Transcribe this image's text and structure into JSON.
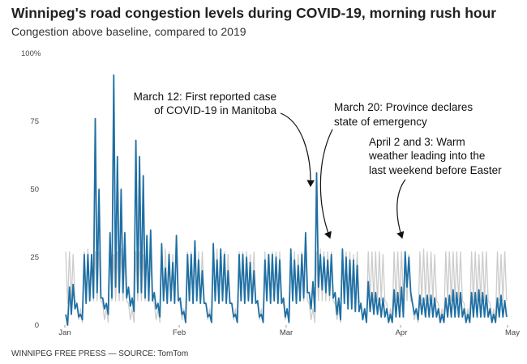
{
  "title": "Winnipeg's road congestion levels during COVID-19, morning rush hour",
  "subtitle": "Congestion above baseline, compared to 2019",
  "footer": "WINNIPEG FREE PRESS — SOURCE: TomTom",
  "chart_data": {
    "type": "line",
    "title": "Winnipeg's road congestion levels during COVID-19, morning rush hour",
    "ylabel": "",
    "xlabel": "",
    "ylim": [
      0,
      100
    ],
    "y_ticks": [
      "100%",
      "75",
      "50",
      "25",
      "0"
    ],
    "y_tick_values": [
      100,
      75,
      50,
      25,
      0
    ],
    "x_ticks": [
      "Jan",
      "Feb",
      "Mar",
      "Apr",
      "May"
    ],
    "x_range": [
      "Jan 1",
      "Apr 29"
    ],
    "grid": false,
    "colors": {
      "current": "#1f6fa3",
      "baseline": "#cccccc"
    },
    "series": [
      {
        "key": "baseline",
        "daily_high": [
          27,
          27,
          26,
          8,
          6,
          27,
          28,
          26,
          27,
          27,
          8,
          6,
          27,
          26,
          27,
          28,
          27,
          8,
          6,
          27,
          27,
          26,
          27,
          26,
          8,
          6,
          27,
          28,
          27,
          26,
          27,
          8,
          6,
          27,
          27,
          26,
          27,
          27,
          8,
          6,
          27,
          28,
          27,
          27,
          26,
          8,
          6,
          27,
          27,
          27,
          26,
          27,
          8,
          6,
          27,
          26,
          27,
          27,
          27,
          8,
          6,
          27,
          27,
          26,
          27,
          27,
          8,
          6,
          27,
          28,
          27,
          27,
          27,
          8,
          6,
          27,
          27,
          27,
          26,
          27,
          8,
          6,
          27,
          27,
          27,
          27,
          26,
          8,
          6,
          27,
          27,
          27,
          27,
          26,
          8,
          6,
          27,
          28,
          27,
          27,
          26,
          8,
          6,
          27,
          27,
          27,
          27,
          27,
          8,
          6,
          27,
          27,
          26,
          27,
          27,
          8,
          6,
          27,
          26,
          27
        ],
        "daily_low": [
          8,
          9,
          9,
          2,
          1,
          9,
          9,
          9,
          9,
          9,
          2,
          1,
          9,
          9,
          9,
          9,
          9,
          2,
          1,
          9,
          9,
          9,
          9,
          9,
          2,
          1,
          9,
          9,
          9,
          9,
          9,
          2,
          1,
          9,
          9,
          9,
          9,
          9,
          2,
          1,
          9,
          9,
          9,
          9,
          9,
          2,
          1,
          9,
          9,
          9,
          9,
          9,
          2,
          1,
          9,
          9,
          9,
          9,
          9,
          2,
          1,
          9,
          9,
          9,
          9,
          9,
          2,
          1,
          9,
          9,
          9,
          9,
          9,
          2,
          1,
          9,
          9,
          9,
          9,
          9,
          2,
          1,
          9,
          9,
          9,
          9,
          9,
          2,
          1,
          9,
          9,
          9,
          9,
          9,
          2,
          1,
          9,
          9,
          9,
          9,
          9,
          2,
          1,
          9,
          9,
          9,
          9,
          9,
          2,
          1,
          9,
          9,
          9,
          9,
          9,
          2,
          1,
          9,
          9,
          9
        ]
      },
      {
        "key": "current",
        "daily_high": [
          4,
          14,
          15,
          8,
          4,
          26,
          26,
          26,
          76,
          50,
          10,
          8,
          34,
          92,
          62,
          50,
          34,
          14,
          10,
          68,
          62,
          55,
          33,
          35,
          12,
          8,
          30,
          21,
          26,
          23,
          33,
          10,
          5,
          26,
          26,
          31,
          24,
          20,
          8,
          4,
          30,
          24,
          28,
          26,
          20,
          8,
          4,
          26,
          26,
          25,
          23,
          20,
          9,
          4,
          24,
          26,
          26,
          25,
          24,
          10,
          6,
          28,
          24,
          22,
          26,
          34,
          12,
          16,
          56,
          26,
          25,
          24,
          26,
          12,
          10,
          28,
          25,
          24,
          24,
          22,
          8,
          6,
          16,
          12,
          12,
          10,
          10,
          6,
          4,
          13,
          12,
          14,
          27,
          25,
          8,
          6,
          11,
          10,
          11,
          11,
          10,
          6,
          4,
          10,
          11,
          13,
          12,
          12,
          6,
          4,
          12,
          12,
          13,
          12,
          11,
          6,
          4,
          10,
          11,
          9
        ],
        "daily_low": [
          0,
          4,
          6,
          3,
          2,
          8,
          9,
          10,
          12,
          10,
          6,
          4,
          10,
          14,
          12,
          12,
          10,
          7,
          5,
          12,
          12,
          10,
          9,
          9,
          6,
          3,
          9,
          8,
          9,
          8,
          9,
          4,
          1,
          9,
          8,
          9,
          8,
          8,
          3,
          1,
          9,
          8,
          9,
          8,
          8,
          3,
          1,
          9,
          8,
          9,
          8,
          8,
          3,
          1,
          9,
          8,
          9,
          8,
          8,
          3,
          1,
          9,
          8,
          9,
          10,
          12,
          6,
          5,
          14,
          13,
          12,
          11,
          10,
          4,
          2,
          8,
          6,
          6,
          5,
          5,
          2,
          1,
          5,
          4,
          4,
          3,
          3,
          1,
          1,
          3,
          3,
          3,
          14,
          12,
          4,
          2,
          4,
          3,
          3,
          3,
          3,
          1,
          1,
          3,
          3,
          3,
          3,
          3,
          1,
          1,
          3,
          3,
          3,
          3,
          3,
          1,
          1,
          3,
          3,
          3
        ]
      }
    ],
    "annotations": [
      {
        "lines": [
          "March 12: First reported case",
          "of COVID-19 in Manitoba"
        ]
      },
      {
        "lines": [
          "March 20: Province declares",
          "state of emergency"
        ]
      },
      {
        "lines": [
          "April 2 and 3: Warm",
          "weather leading into the",
          "last weekend before Easter"
        ]
      }
    ]
  }
}
